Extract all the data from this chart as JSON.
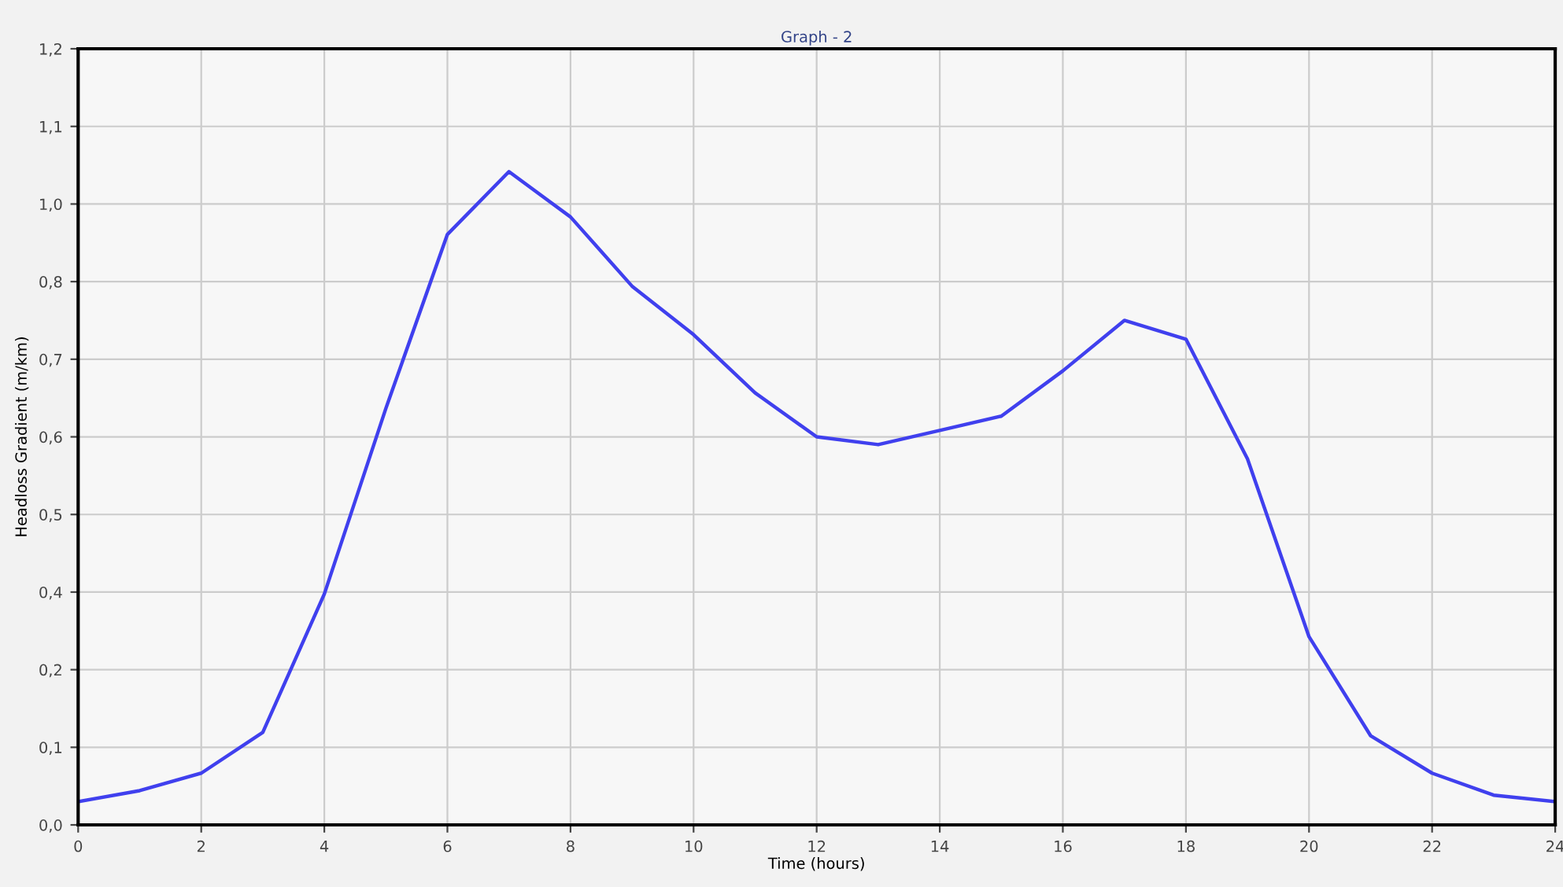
{
  "chart_data": {
    "type": "line",
    "title": "Graph - 2",
    "xlabel": "Time (hours)",
    "ylabel": "Headloss Gradient (m/km)",
    "x": [
      0,
      1,
      2,
      3,
      4,
      5,
      6,
      7,
      8,
      9,
      10,
      11,
      12,
      13,
      14,
      15,
      16,
      17,
      18,
      19,
      20,
      21,
      22,
      23,
      24
    ],
    "series": [
      {
        "color": "#4040ee",
        "values": [
          0.036,
          0.053,
          0.08,
          0.143,
          0.357,
          0.644,
          0.913,
          1.01,
          0.94,
          0.833,
          0.758,
          0.668,
          0.6,
          0.588,
          0.61,
          0.632,
          0.702,
          0.78,
          0.751,
          0.566,
          0.291,
          0.138,
          0.08,
          0.046,
          0.036
        ]
      }
    ],
    "xlim": [
      0,
      24
    ],
    "xticks": [
      0,
      2,
      4,
      6,
      8,
      10,
      12,
      14,
      16,
      18,
      20,
      22,
      24
    ],
    "ylim": [
      0,
      1.2
    ],
    "yticks": [
      {
        "value": 0,
        "label": "0,0"
      },
      {
        "value": 0.12,
        "label": "0,1"
      },
      {
        "value": 0.24,
        "label": "0,2"
      },
      {
        "value": 0.36,
        "label": "0,4"
      },
      {
        "value": 0.48,
        "label": "0,5"
      },
      {
        "value": 0.6,
        "label": "0,6"
      },
      {
        "value": 0.72,
        "label": "0,7"
      },
      {
        "value": 0.84,
        "label": "0,8"
      },
      {
        "value": 0.96,
        "label": "1,0"
      },
      {
        "value": 1.08,
        "label": "1,1"
      },
      {
        "value": 1.2,
        "label": "1,2"
      }
    ],
    "grid": true,
    "line_style": "solid"
  }
}
